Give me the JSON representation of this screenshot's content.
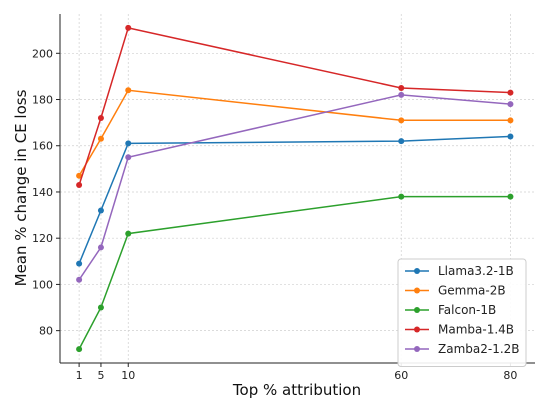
{
  "chart_data": {
    "type": "line",
    "xlabel": "Top % attribution",
    "ylabel": "Mean % change in CE loss",
    "x": [
      1,
      5,
      10,
      60,
      80
    ],
    "x_ticks": [
      1,
      5,
      10,
      60,
      80
    ],
    "y_ticks": [
      80,
      100,
      120,
      140,
      160,
      180,
      200
    ],
    "xlim": [
      -2.5,
      84.5
    ],
    "ylim": [
      66,
      217
    ],
    "grid": true,
    "legend_position": "bottom-right",
    "series": [
      {
        "name": "Llama3.2-1B",
        "color": "#1f77b4",
        "values": [
          109,
          132,
          161,
          162,
          164
        ]
      },
      {
        "name": "Gemma-2B",
        "color": "#ff7f0e",
        "values": [
          147,
          163,
          184,
          171,
          171
        ]
      },
      {
        "name": "Falcon-1B",
        "color": "#2ca02c",
        "values": [
          72,
          90,
          122,
          138,
          138
        ]
      },
      {
        "name": "Mamba-1.4B",
        "color": "#d62728",
        "values": [
          143,
          172,
          211,
          185,
          183
        ]
      },
      {
        "name": "Zamba2-1.2B",
        "color": "#9467bd",
        "values": [
          102,
          116,
          155,
          182,
          178
        ]
      }
    ]
  }
}
